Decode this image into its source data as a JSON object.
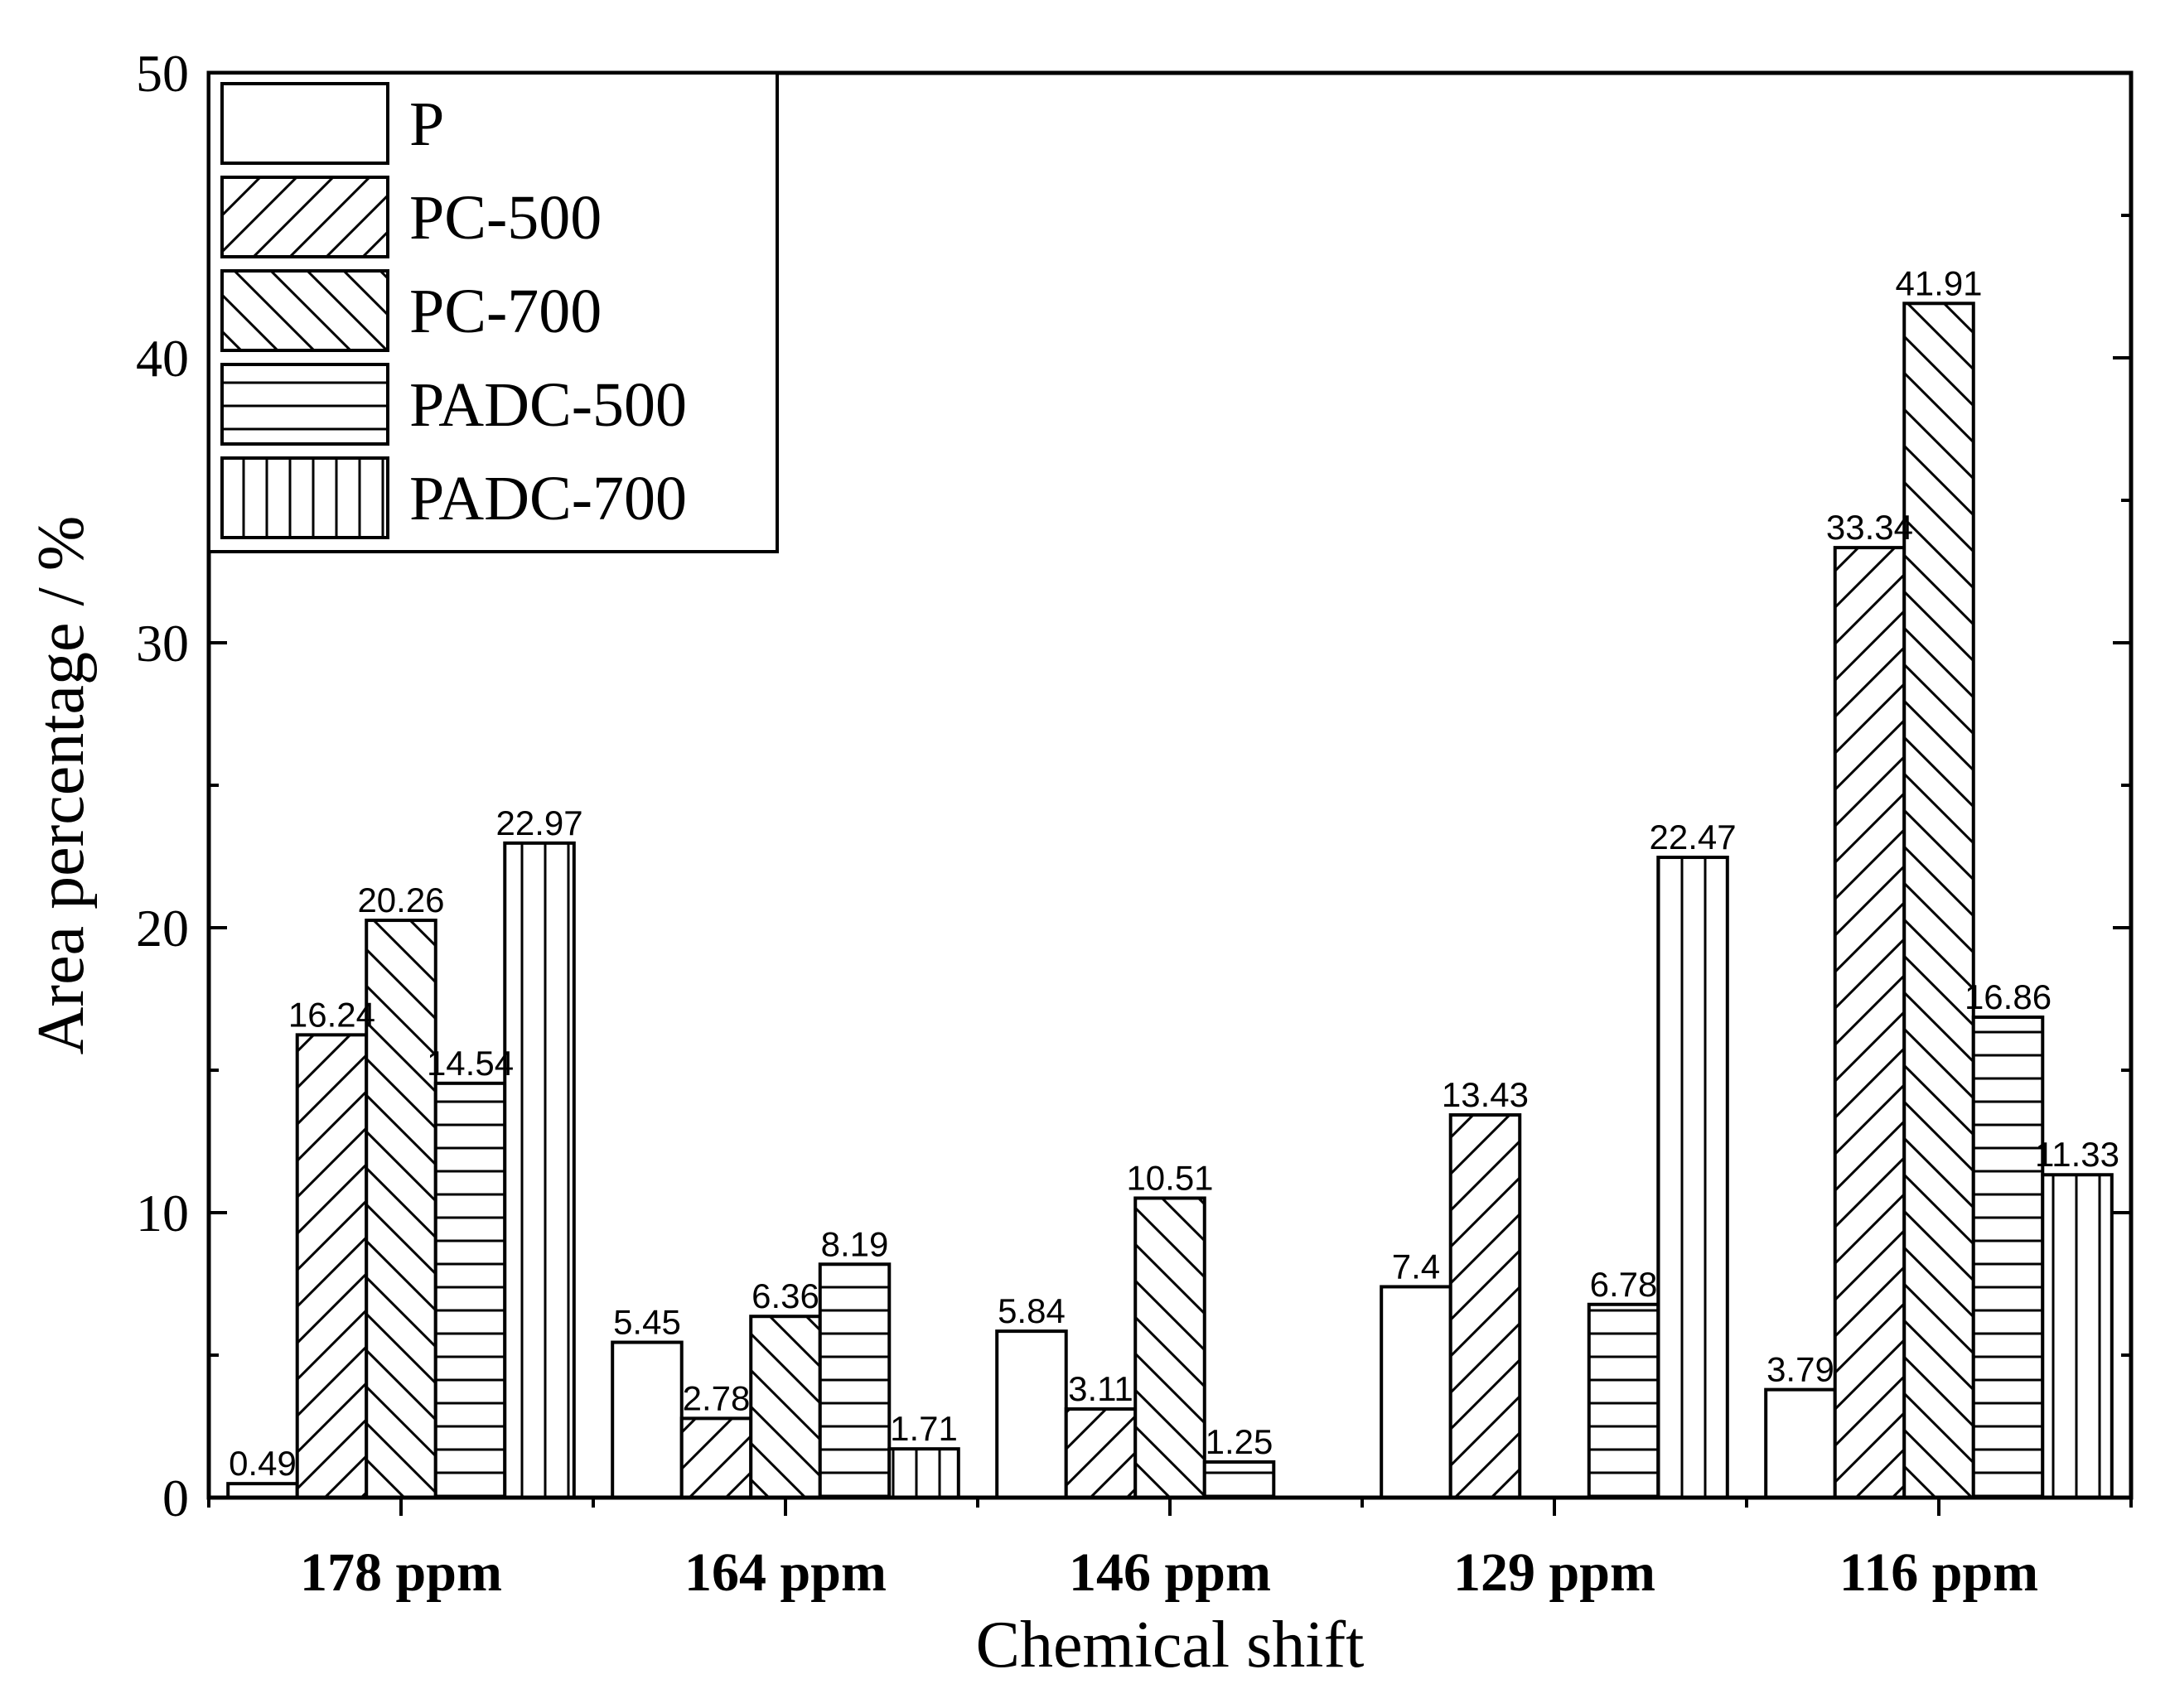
{
  "chart_data": {
    "type": "bar",
    "title": "",
    "xlabel": "Chemical shift",
    "ylabel": "Area percentage / %",
    "ylim": [
      0,
      50
    ],
    "yticks": [
      0,
      10,
      20,
      30,
      40,
      50
    ],
    "categories": [
      "178 ppm",
      "164 ppm",
      "146 ppm",
      "129 ppm",
      "116 ppm"
    ],
    "legend_position": "top-left",
    "series": [
      {
        "name": "P",
        "pattern": "none",
        "values": [
          0.49,
          5.45,
          5.84,
          7.4,
          3.79
        ],
        "labels": [
          "0.49",
          "5.45",
          "5.84",
          "7.4",
          "3.79"
        ]
      },
      {
        "name": "PC-500",
        "pattern": "diagonal-up",
        "values": [
          16.24,
          2.78,
          3.11,
          13.43,
          33.34
        ],
        "labels": [
          "16.24",
          "2.78",
          "3.11",
          "13.43",
          "33.34"
        ]
      },
      {
        "name": "PC-700",
        "pattern": "diagonal-down",
        "values": [
          20.26,
          6.36,
          10.51,
          null,
          41.91
        ],
        "labels": [
          "20.26",
          "6.36",
          "10.51",
          null,
          "41.91"
        ]
      },
      {
        "name": "PADC-500",
        "pattern": "horizontal",
        "values": [
          14.54,
          8.19,
          1.25,
          6.78,
          16.86
        ],
        "labels": [
          "14.54",
          "8.19",
          "1.25",
          "6.78",
          "16.86"
        ]
      },
      {
        "name": "PADC-700",
        "pattern": "vertical",
        "values": [
          22.97,
          1.71,
          null,
          22.47,
          11.33
        ],
        "labels": [
          "22.97",
          "1.71",
          null,
          "22.47",
          "11.33"
        ]
      }
    ]
  }
}
